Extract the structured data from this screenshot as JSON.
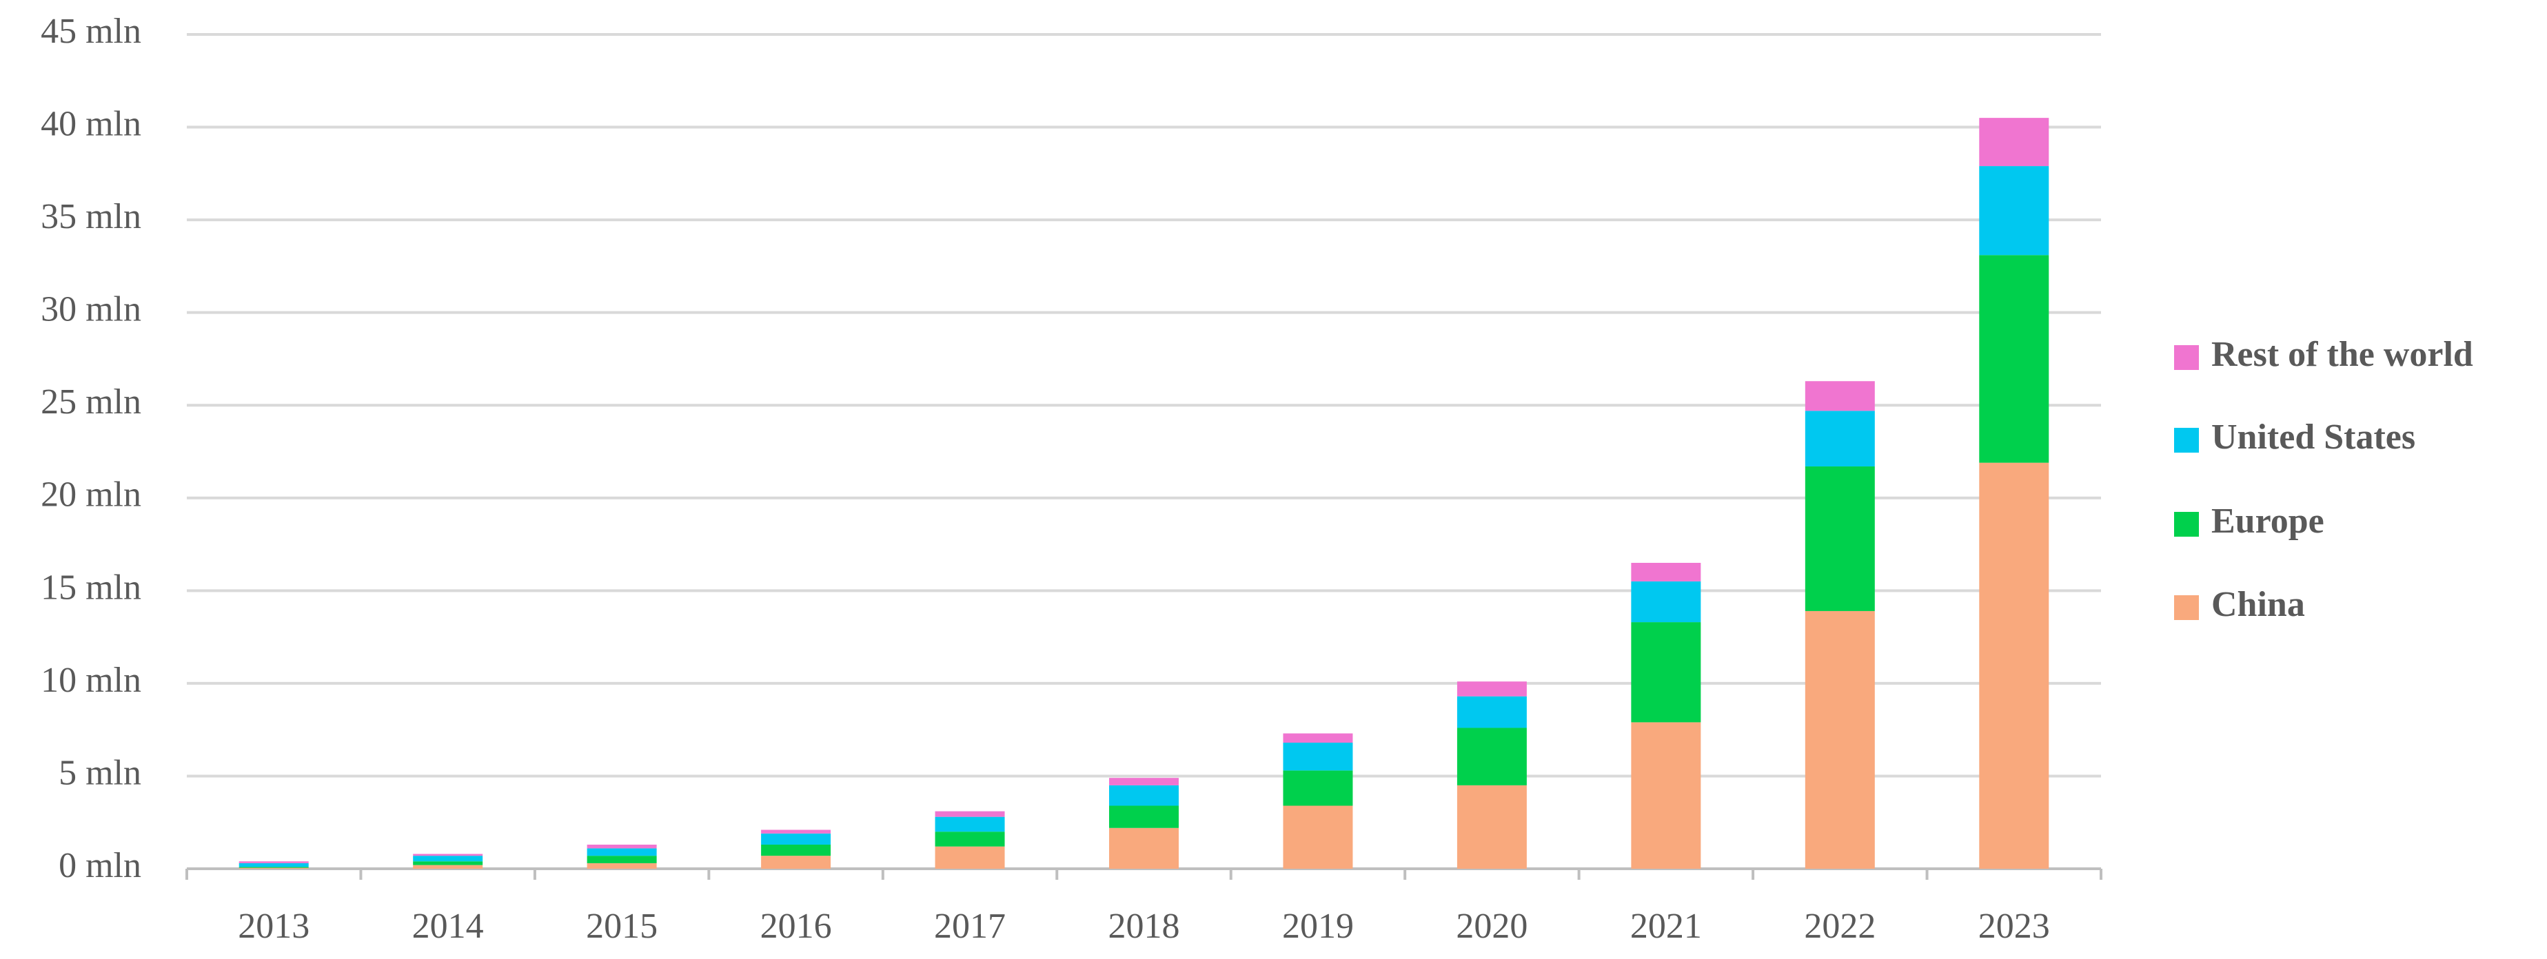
{
  "chart_data": {
    "type": "stacked_bar",
    "categories": [
      "2013",
      "2014",
      "2015",
      "2016",
      "2017",
      "2018",
      "2019",
      "2020",
      "2021",
      "2022",
      "2023"
    ],
    "series": [
      {
        "name": "China",
        "color": "#f9a97d",
        "values": [
          0.05,
          0.2,
          0.3,
          0.7,
          1.2,
          2.2,
          3.4,
          4.5,
          7.9,
          13.9,
          21.9
        ]
      },
      {
        "name": "Europe",
        "color": "#00d04c",
        "values": [
          0.05,
          0.2,
          0.4,
          0.6,
          0.8,
          1.2,
          1.9,
          3.1,
          5.4,
          7.8,
          11.2
        ]
      },
      {
        "name": "United States",
        "color": "#00c8f0",
        "values": [
          0.2,
          0.3,
          0.4,
          0.6,
          0.8,
          1.1,
          1.5,
          1.7,
          2.2,
          3.0,
          4.8
        ]
      },
      {
        "name": "Rest of the world",
        "color": "#f075d0",
        "values": [
          0.1,
          0.1,
          0.2,
          0.2,
          0.3,
          0.4,
          0.5,
          0.8,
          1.0,
          1.6,
          2.6
        ]
      }
    ],
    "ylim": [
      0,
      45
    ],
    "yticks": [
      {
        "value": 0,
        "label": "0 mln"
      },
      {
        "value": 5,
        "label": "5 mln"
      },
      {
        "value": 10,
        "label": "10 mln"
      },
      {
        "value": 15,
        "label": "15 mln"
      },
      {
        "value": 20,
        "label": "20 mln"
      },
      {
        "value": 25,
        "label": "25 mln"
      },
      {
        "value": 30,
        "label": "30 mln"
      },
      {
        "value": 35,
        "label": "35 mln"
      },
      {
        "value": 40,
        "label": "40 mln"
      },
      {
        "value": 45,
        "label": "45 mln"
      }
    ],
    "grid": true,
    "legend": "right"
  }
}
